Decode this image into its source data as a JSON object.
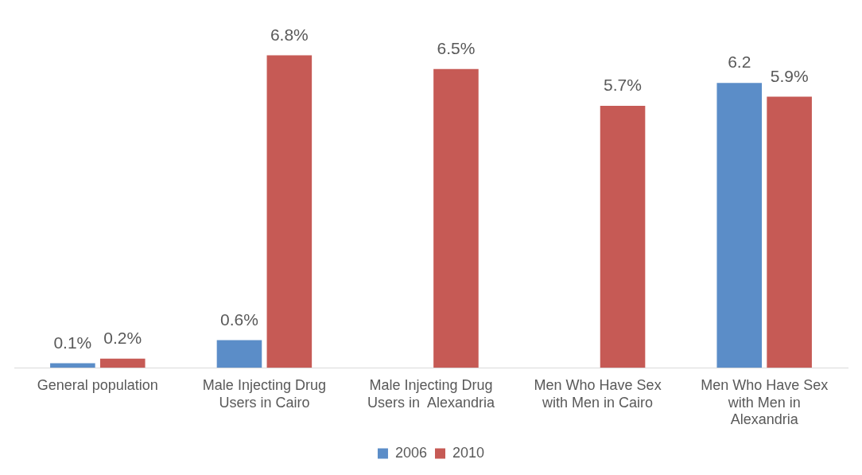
{
  "chart_data": {
    "type": "bar",
    "categories": [
      "General population",
      "Male Injecting Drug Users in Cairo",
      "Male Injecting Drug Users in  Alexandria",
      "Men Who Have Sex with Men in Cairo",
      "Men Who Have Sex with Men in Alexandria"
    ],
    "series": [
      {
        "name": "2006",
        "color": "#5b8dc8",
        "values": [
          0.1,
          0.6,
          null,
          null,
          6.2
        ],
        "value_labels": [
          "0.1%",
          "0.6%",
          null,
          null,
          "6.2"
        ]
      },
      {
        "name": "2010",
        "color": "#c65a55",
        "values": [
          0.2,
          6.8,
          6.5,
          5.7,
          5.9
        ],
        "value_labels": [
          "0.2%",
          "6.8%",
          "6.5%",
          "5.7%",
          "5.9%"
        ]
      }
    ],
    "legend": "bottom",
    "grid": false
  }
}
